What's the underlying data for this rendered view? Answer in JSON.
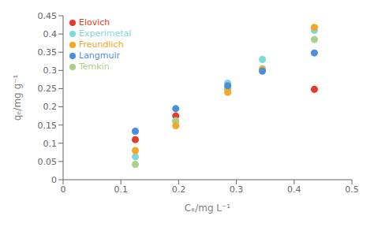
{
  "chart_data": {
    "type": "scatter",
    "xlabel": "Cₑ/mg L⁻¹",
    "ylabel": "qₑ/mg g⁻¹",
    "x": [
      0.125,
      0.195,
      0.285,
      0.345,
      0.435
    ],
    "series": [
      {
        "name": "Experimetal",
        "color": "#7DD8D8",
        "values": [
          0.063,
          0.16,
          0.265,
          0.33,
          0.41
        ]
      },
      {
        "name": "Elovich",
        "color": "#E8392A",
        "values": [
          0.11,
          0.175,
          0.25,
          0.3,
          0.248
        ]
      },
      {
        "name": "Temkin",
        "color": "#AACF8A",
        "values": [
          0.042,
          0.162,
          0.25,
          0.305,
          0.385
        ]
      },
      {
        "name": "Freundlich",
        "color": "#F5A623",
        "values": [
          0.08,
          0.148,
          0.24,
          0.302,
          0.418
        ]
      },
      {
        "name": "Langmuir",
        "color": "#4A90D9",
        "values": [
          0.133,
          0.195,
          0.258,
          0.298,
          0.348
        ]
      }
    ],
    "xlim": [
      0,
      0.5
    ],
    "ylim": [
      0,
      0.45
    ],
    "xticks": [
      0,
      0.1,
      0.2,
      0.3,
      0.4,
      0.5
    ],
    "yticks": [
      0,
      0.05,
      0.1,
      0.15,
      0.2,
      0.25,
      0.3,
      0.35,
      0.4,
      0.45
    ],
    "grid": false,
    "legend": "upper left"
  }
}
